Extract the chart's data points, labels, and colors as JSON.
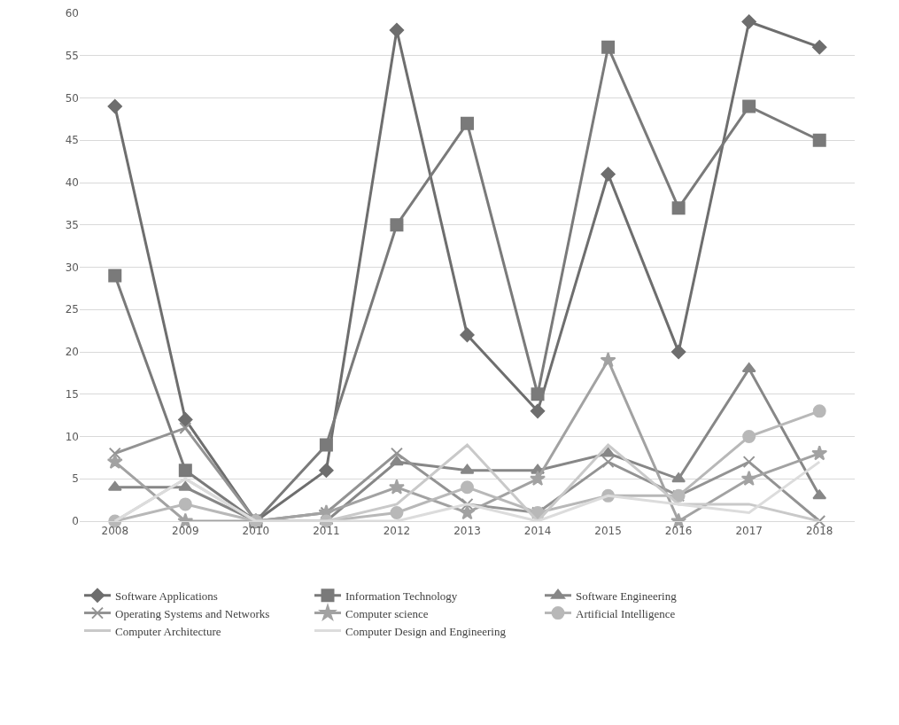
{
  "chart_data": {
    "type": "line",
    "categories": [
      "2008",
      "2009",
      "2010",
      "2011",
      "2012",
      "2013",
      "2014",
      "2015",
      "2016",
      "2017",
      "2018"
    ],
    "ylim": [
      0,
      60
    ],
    "yticks": [
      0,
      5,
      10,
      15,
      20,
      25,
      30,
      35,
      40,
      45,
      50,
      55,
      60
    ],
    "grid": "y",
    "legend": "bottom",
    "line_style": "solid",
    "series": [
      {
        "name": "Software Applications",
        "color": "#6e6e6e",
        "marker": "diamond",
        "values": [
          49,
          12,
          0,
          6,
          58,
          22,
          13,
          41,
          20,
          59,
          56
        ]
      },
      {
        "name": "Information Technology",
        "color": "#7a7a7a",
        "marker": "square",
        "values": [
          29,
          6,
          0,
          9,
          35,
          47,
          15,
          56,
          37,
          49,
          45
        ]
      },
      {
        "name": "Software Engineering",
        "color": "#878787",
        "marker": "triangle",
        "values": [
          4,
          4,
          0,
          0,
          7,
          6,
          6,
          8,
          5,
          18,
          3
        ]
      },
      {
        "name": "Operating Systems and Networks",
        "color": "#939393",
        "marker": "cross",
        "values": [
          8,
          11,
          0,
          1,
          8,
          2,
          1,
          7,
          3,
          7,
          0
        ]
      },
      {
        "name": "Computer science",
        "color": "#a2a2a2",
        "marker": "star",
        "values": [
          7,
          0,
          0,
          1,
          4,
          1,
          5,
          19,
          0,
          5,
          8
        ]
      },
      {
        "name": "Artificial Intelligence",
        "color": "#b8b8b8",
        "marker": "circle",
        "values": [
          0,
          2,
          0,
          0,
          1,
          4,
          1,
          3,
          3,
          10,
          13
        ]
      },
      {
        "name": "Computer Architecture",
        "color": "#c9c9c9",
        "marker": "none",
        "values": [
          0,
          5,
          0,
          0,
          2,
          9,
          0,
          9,
          2,
          2,
          0
        ]
      },
      {
        "name": "Computer Design and Engineering",
        "color": "#dcdcdc",
        "marker": "none",
        "values": [
          0,
          5,
          0,
          0,
          0,
          2,
          0,
          3,
          2,
          1,
          7
        ]
      }
    ]
  }
}
